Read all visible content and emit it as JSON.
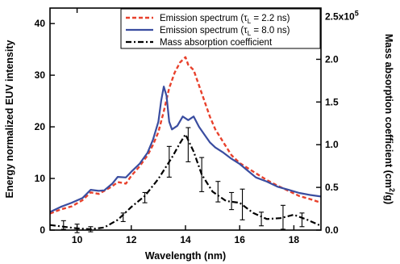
{
  "chart_data": {
    "type": "line",
    "xlabel": "Wavelength (nm)",
    "ylabel_left": "Energy normalized EUV intensity",
    "ylabel_right": "Mass absorption coefficient (cm²/g)",
    "xlim": [
      9,
      19
    ],
    "ylim_left": [
      0,
      43
    ],
    "ylim_right": [
      0,
      260000
    ],
    "x_ticks": [
      10,
      12,
      14,
      16,
      18
    ],
    "y_ticks_left": [
      0,
      10,
      20,
      30,
      40
    ],
    "y_ticks_right": [
      {
        "value": 0,
        "label": "0.0"
      },
      {
        "value": 50000,
        "label": "0.5"
      },
      {
        "value": 100000,
        "label": "1.0"
      },
      {
        "value": 150000,
        "label": "1.5"
      },
      {
        "value": 200000,
        "label": "2.0"
      },
      {
        "value": 250000,
        "label": "2.5x10^5"
      }
    ],
    "legend_position": "top-right",
    "series": [
      {
        "name": "Emission spectrum (τL = 2.2 ns)",
        "axis": "left",
        "color": "#e8412c",
        "style": "dashed",
        "x": [
          9.0,
          9.4,
          9.8,
          10.2,
          10.5,
          10.8,
          11.0,
          11.3,
          11.5,
          11.8,
          12.0,
          12.3,
          12.6,
          12.8,
          13.0,
          13.2,
          13.4,
          13.6,
          13.8,
          14.0,
          14.1,
          14.3,
          14.5,
          14.7,
          14.9,
          15.1,
          15.4,
          15.7,
          16.0,
          16.3,
          16.6,
          17.0,
          17.4,
          17.8,
          18.2,
          18.6,
          19.0
        ],
        "y": [
          3.2,
          4.0,
          4.6,
          5.8,
          7.3,
          7.0,
          7.6,
          8.5,
          9.3,
          9.0,
          10.5,
          12.3,
          14.5,
          16.5,
          19.0,
          23.0,
          27.5,
          30.5,
          32.5,
          33.5,
          32.0,
          31.0,
          28.0,
          25.0,
          22.0,
          19.5,
          17.0,
          14.5,
          13.0,
          12.0,
          11.0,
          9.7,
          8.6,
          7.6,
          6.6,
          6.0,
          5.3
        ]
      },
      {
        "name": "Emission spectrum (τL = 8.0 ns)",
        "axis": "left",
        "color": "#3a4da0",
        "style": "solid",
        "x": [
          9.0,
          9.4,
          9.8,
          10.2,
          10.5,
          10.8,
          11.0,
          11.3,
          11.5,
          11.8,
          12.0,
          12.3,
          12.6,
          12.8,
          13.0,
          13.1,
          13.2,
          13.3,
          13.4,
          13.5,
          13.7,
          13.9,
          14.1,
          14.3,
          14.5,
          14.7,
          14.9,
          15.1,
          15.4,
          15.7,
          16.0,
          16.3,
          16.6,
          17.0,
          17.4,
          17.8,
          18.2,
          18.6,
          19.0
        ],
        "y": [
          3.5,
          4.5,
          5.3,
          6.2,
          7.8,
          7.6,
          7.7,
          9.0,
          10.3,
          10.2,
          11.3,
          12.8,
          15.0,
          17.5,
          21.0,
          25.0,
          27.8,
          26.0,
          21.0,
          19.5,
          20.2,
          22.0,
          21.3,
          22.0,
          20.0,
          18.5,
          17.0,
          16.0,
          15.0,
          13.8,
          12.8,
          11.5,
          10.2,
          9.4,
          8.4,
          7.8,
          7.2,
          6.8,
          6.5
        ]
      },
      {
        "name": "Mass absorption coefficient",
        "axis": "right",
        "color": "#000000",
        "style": "dash-dot",
        "x": [
          9.0,
          9.5,
          10.0,
          10.5,
          11.0,
          11.5,
          12.0,
          12.5,
          13.0,
          13.5,
          13.8,
          14.0,
          14.3,
          14.6,
          15.0,
          15.5,
          16.0,
          16.5,
          17.0,
          17.5,
          18.0,
          18.5,
          19.0
        ],
        "y": [
          6000,
          4000,
          2000,
          1000,
          3000,
          12000,
          27000,
          40000,
          60000,
          85000,
          102000,
          112000,
          92000,
          65000,
          45000,
          34000,
          32000,
          20000,
          13000,
          14000,
          18000,
          12000,
          5000
        ]
      }
    ],
    "error_bars": [
      {
        "x": 9.5,
        "y": 6000,
        "err": 5000
      },
      {
        "x": 10.0,
        "y": 2000,
        "err": 5000
      },
      {
        "x": 10.5,
        "y": 1000,
        "err": 3000
      },
      {
        "x": 11.7,
        "y": 15000,
        "err": 5000
      },
      {
        "x": 12.5,
        "y": 38000,
        "err": 6000
      },
      {
        "x": 13.4,
        "y": 80000,
        "err": 18000
      },
      {
        "x": 14.1,
        "y": 100000,
        "err": 20000
      },
      {
        "x": 14.6,
        "y": 65000,
        "err": 20000
      },
      {
        "x": 15.2,
        "y": 45000,
        "err": 12000
      },
      {
        "x": 15.7,
        "y": 34000,
        "err": 10000
      },
      {
        "x": 16.1,
        "y": 30000,
        "err": 18000
      },
      {
        "x": 16.8,
        "y": 13000,
        "err": 8000
      },
      {
        "x": 17.6,
        "y": 15000,
        "err": 14000
      },
      {
        "x": 18.3,
        "y": 12000,
        "err": 8000
      }
    ]
  },
  "legend": {
    "items": [
      {
        "prefix": "Emission spectrum (τ",
        "sub": "L",
        "suffix": " = 2.2 ns)"
      },
      {
        "prefix": "Emission spectrum (τ",
        "sub": "L",
        "suffix": " = 8.0 ns)"
      },
      {
        "prefix": "Mass absorption coefficient",
        "sub": "",
        "suffix": ""
      }
    ]
  }
}
